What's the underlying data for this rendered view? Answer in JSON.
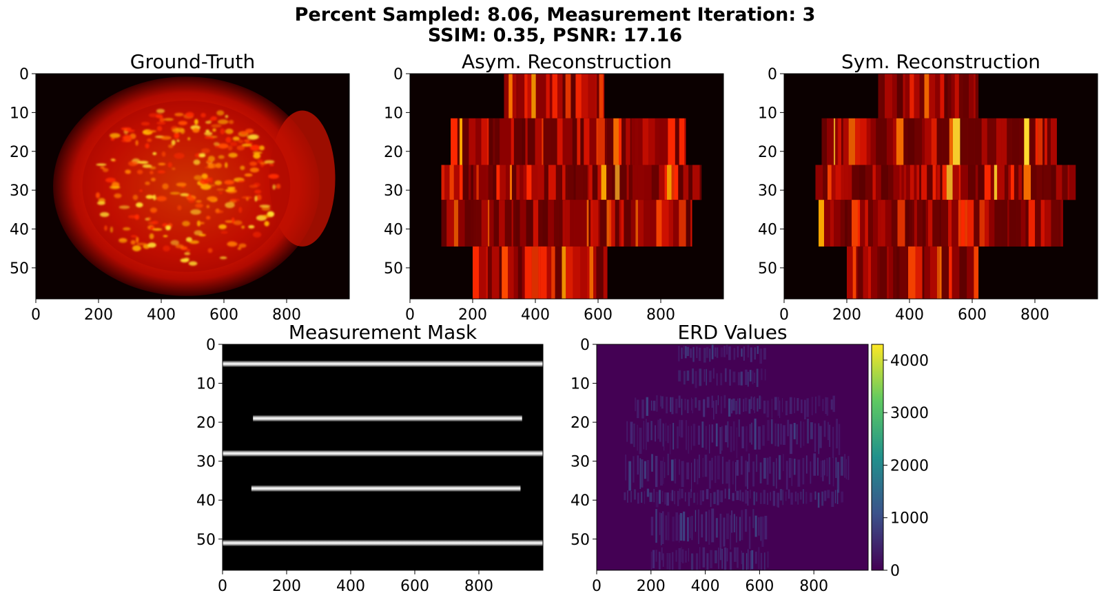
{
  "figure": {
    "title_line1": "Percent Sampled: 8.06, Measurement Iteration: 3",
    "title_line2": "SSIM: 0.35, PSNR: 17.16"
  },
  "chart_data": [
    {
      "type": "heatmap",
      "title": "Ground-Truth",
      "colormap": "hot",
      "xlim": [
        0,
        1000
      ],
      "ylim": [
        58,
        0
      ],
      "xticks": [
        0,
        200,
        400,
        600,
        800
      ],
      "yticks": [
        0,
        10,
        20,
        30,
        40,
        50
      ],
      "content": "cell-shaped intensity blob centered near x=480, y=28 with bright speckles"
    },
    {
      "type": "heatmap",
      "title": "Asym. Reconstruction",
      "colormap": "hot",
      "xlim": [
        0,
        1000
      ],
      "ylim": [
        58,
        0
      ],
      "xticks": [
        0,
        200,
        400,
        600,
        800
      ],
      "yticks": [
        0,
        10,
        20,
        30,
        40,
        50
      ],
      "bands": [
        {
          "y0": 0,
          "y1": 11.5,
          "x0": 300,
          "x1": 620
        },
        {
          "y0": 11.5,
          "y1": 23.5,
          "x0": 130,
          "x1": 880
        },
        {
          "y0": 23.5,
          "y1": 32.5,
          "x0": 100,
          "x1": 930
        },
        {
          "y0": 32.5,
          "y1": 44.5,
          "x0": 100,
          "x1": 900
        },
        {
          "y0": 44.5,
          "y1": 58,
          "x0": 200,
          "x1": 630
        }
      ]
    },
    {
      "type": "heatmap",
      "title": "Sym. Reconstruction",
      "colormap": "hot",
      "xlim": [
        0,
        1000
      ],
      "ylim": [
        58,
        0
      ],
      "xticks": [
        0,
        200,
        400,
        600,
        800
      ],
      "yticks": [
        0,
        10,
        20,
        30,
        40,
        50
      ],
      "bands": [
        {
          "y0": 0,
          "y1": 11.5,
          "x0": 300,
          "x1": 620
        },
        {
          "y0": 11.5,
          "y1": 23.5,
          "x0": 120,
          "x1": 870
        },
        {
          "y0": 23.5,
          "y1": 32.5,
          "x0": 100,
          "x1": 930
        },
        {
          "y0": 32.5,
          "y1": 44.5,
          "x0": 110,
          "x1": 890
        },
        {
          "y0": 44.5,
          "y1": 58,
          "x0": 200,
          "x1": 620
        }
      ]
    },
    {
      "type": "heatmap",
      "title": "Measurement Mask",
      "colormap": "gray",
      "xlim": [
        0,
        1000
      ],
      "ylim": [
        58,
        0
      ],
      "xticks": [
        0,
        200,
        400,
        600,
        800
      ],
      "yticks": [
        0,
        10,
        20,
        30,
        40,
        50
      ],
      "lines": [
        {
          "y": 5,
          "x0": 0,
          "x1": 1000
        },
        {
          "y": 19,
          "x0": 95,
          "x1": 935
        },
        {
          "y": 28,
          "x0": 0,
          "x1": 1000
        },
        {
          "y": 37,
          "x0": 90,
          "x1": 930
        },
        {
          "y": 51,
          "x0": 0,
          "x1": 1000
        }
      ]
    },
    {
      "type": "heatmap",
      "title": "ERD Values",
      "colormap": "viridis",
      "xlim": [
        0,
        1000
      ],
      "ylim": [
        58,
        0
      ],
      "xticks": [
        0,
        200,
        400,
        600,
        800
      ],
      "yticks": [
        0,
        10,
        20,
        30,
        40,
        50
      ],
      "colorbar": {
        "min": 0,
        "max": 4300,
        "ticks": [
          0,
          1000,
          2000,
          3000,
          4000
        ]
      }
    }
  ],
  "colors": {
    "hot_black": "#0b0000",
    "hot_red": "#e01800",
    "hot_yellow": "#ffe030",
    "viridis_base": "#440c55",
    "mask_line": "#f4f4f4"
  }
}
